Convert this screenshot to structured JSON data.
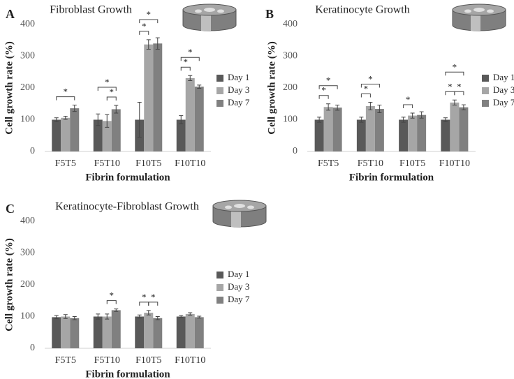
{
  "chart_data": [
    {
      "type": "bar",
      "panel": "A",
      "title": "Fibroblast Growth",
      "y_label": "Cell growth rate (%)",
      "x_label": "Fibrin formulation",
      "categories": [
        "F5T5",
        "F5T10",
        "F10T5",
        "F10T10"
      ],
      "series": [
        {
          "name": "Day 1",
          "color": "#595959",
          "values": [
            100,
            100,
            100,
            100
          ],
          "errors": [
            6,
            18,
            55,
            13
          ]
        },
        {
          "name": "Day 3",
          "color": "#a6a6a6",
          "values": [
            106,
            96,
            337,
            231
          ],
          "errors": [
            5,
            20,
            15,
            8
          ]
        },
        {
          "name": "Day 7",
          "color": "#808080",
          "values": [
            136,
            133,
            340,
            204
          ],
          "errors": [
            10,
            12,
            18,
            5
          ]
        }
      ],
      "significance": [
        {
          "category": "F5T5",
          "between": [
            "Day 1",
            "Day 7"
          ],
          "label": "*"
        },
        {
          "category": "F5T10",
          "between": [
            "Day 3",
            "Day 7"
          ],
          "label": "*"
        },
        {
          "category": "F5T10",
          "between": [
            "Day 1",
            "Day 7"
          ],
          "label": "*"
        },
        {
          "category": "F10T5",
          "between": [
            "Day 1",
            "Day 3"
          ],
          "label": "*"
        },
        {
          "category": "F10T5",
          "between": [
            "Day 1",
            "Day 7"
          ],
          "label": "*"
        },
        {
          "category": "F10T10",
          "between": [
            "Day 1",
            "Day 3"
          ],
          "label": "*"
        },
        {
          "category": "F10T10",
          "between": [
            "Day 1",
            "Day 7"
          ],
          "label": "*"
        }
      ],
      "ylim": [
        0,
        400
      ],
      "yticks": [
        0,
        100,
        200,
        300,
        400
      ]
    },
    {
      "type": "bar",
      "panel": "B",
      "title": "Keratinocyte Growth",
      "y_label": "Cell growth rate (%)",
      "x_label": "Fibrin formulation",
      "categories": [
        "F5T5",
        "F5T10",
        "F10T5",
        "F10T10"
      ],
      "series": [
        {
          "name": "Day 1",
          "color": "#595959",
          "values": [
            100,
            100,
            100,
            100
          ],
          "errors": [
            8,
            8,
            8,
            6
          ]
        },
        {
          "name": "Day 3",
          "color": "#a6a6a6",
          "values": [
            140,
            143,
            113,
            154
          ],
          "errors": [
            10,
            12,
            8,
            8
          ]
        },
        {
          "name": "Day 7",
          "color": "#808080",
          "values": [
            138,
            134,
            115,
            139
          ],
          "errors": [
            8,
            12,
            10,
            8
          ]
        }
      ],
      "significance": [
        {
          "category": "F5T5",
          "between": [
            "Day 1",
            "Day 3"
          ],
          "label": "*"
        },
        {
          "category": "F5T5",
          "between": [
            "Day 1",
            "Day 7"
          ],
          "label": "*"
        },
        {
          "category": "F5T10",
          "between": [
            "Day 1",
            "Day 3"
          ],
          "label": "*"
        },
        {
          "category": "F5T10",
          "between": [
            "Day 1",
            "Day 7"
          ],
          "label": "*"
        },
        {
          "category": "F10T5",
          "between": [
            "Day 1",
            "Day 3"
          ],
          "label": "*"
        },
        {
          "category": "F10T10",
          "between": [
            "Day 1",
            "Day 3"
          ],
          "label": "*"
        },
        {
          "category": "F10T10",
          "between": [
            "Day 3",
            "Day 7"
          ],
          "label": "*"
        },
        {
          "category": "F10T10",
          "between": [
            "Day 1",
            "Day 7"
          ],
          "label": "*"
        }
      ],
      "ylim": [
        0,
        400
      ],
      "yticks": [
        0,
        100,
        200,
        300,
        400
      ]
    },
    {
      "type": "bar",
      "panel": "C",
      "title": "Keratinocyte-Fibroblast Growth",
      "y_label": "Cell growth rate (%)",
      "x_label": "Fibrin formulation",
      "categories": [
        "F5T5",
        "F5T10",
        "F10T5",
        "F10T10"
      ],
      "series": [
        {
          "name": "Day 1",
          "color": "#595959",
          "values": [
            98,
            100,
            100,
            100
          ],
          "errors": [
            5,
            8,
            5,
            3
          ]
        },
        {
          "name": "Day 3",
          "color": "#a6a6a6",
          "values": [
            100,
            100,
            112,
            108
          ],
          "errors": [
            6,
            8,
            7,
            4
          ]
        },
        {
          "name": "Day 7",
          "color": "#808080",
          "values": [
            95,
            120,
            95,
            98
          ],
          "errors": [
            5,
            4,
            5,
            3
          ]
        }
      ],
      "significance": [
        {
          "category": "F5T10",
          "between": [
            "Day 3",
            "Day 7"
          ],
          "label": "*"
        },
        {
          "category": "F10T5",
          "between": [
            "Day 1",
            "Day 3"
          ],
          "label": "*"
        },
        {
          "category": "F10T5",
          "between": [
            "Day 3",
            "Day 7"
          ],
          "label": "*"
        }
      ],
      "ylim": [
        0,
        400
      ],
      "yticks": [
        0,
        100,
        200,
        300,
        400
      ]
    }
  ]
}
